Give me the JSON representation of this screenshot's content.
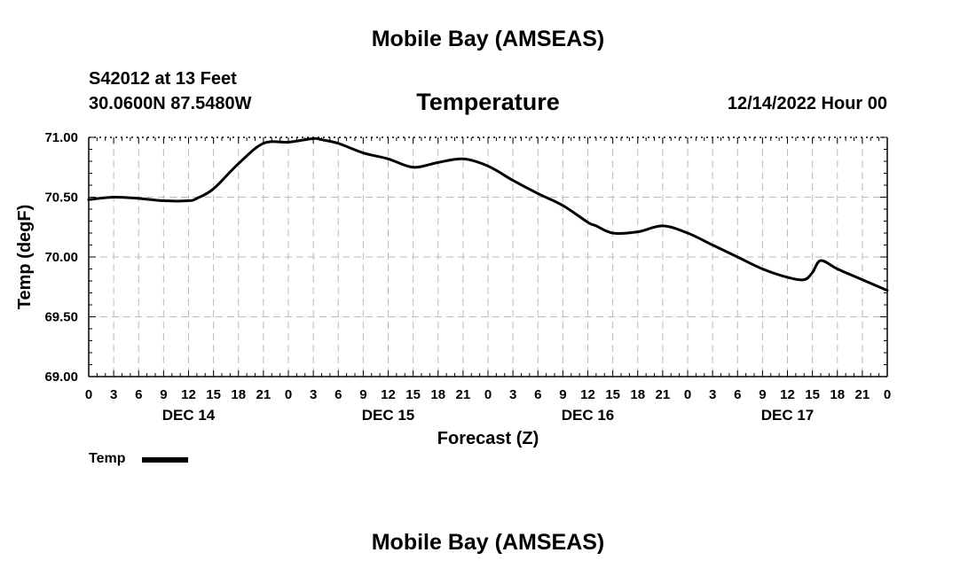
{
  "header": {
    "title": "Mobile Bay (AMSEAS)",
    "station": "S42012 at 13 Feet",
    "coords": "30.0600N  87.5480W",
    "chart_title": "Temperature",
    "datetime": "12/14/2022 Hour 00"
  },
  "footer": {
    "title": "Mobile Bay (AMSEAS)"
  },
  "legend": {
    "label": "Temp"
  },
  "colors": {
    "line": "#000000",
    "grid": "#bbbbbb",
    "axis": "#000000"
  },
  "chart_data": {
    "type": "line",
    "title": "Temperature",
    "xlabel": "Forecast (Z)",
    "ylabel": "Temp (degF)",
    "ylim": [
      69.0,
      71.0
    ],
    "yticks": [
      "69.00",
      "69.50",
      "70.00",
      "70.50",
      "71.00"
    ],
    "x_hours_range": [
      0,
      96
    ],
    "xtick_labels": [
      "0",
      "3",
      "6",
      "9",
      "12",
      "15",
      "18",
      "21",
      "0",
      "3",
      "6",
      "9",
      "12",
      "15",
      "18",
      "21",
      "0",
      "3",
      "6",
      "9",
      "12",
      "15",
      "18",
      "21",
      "0",
      "3",
      "6",
      "9",
      "12",
      "15",
      "18",
      "21",
      "0"
    ],
    "day_labels": [
      {
        "label": "DEC 14",
        "hour": 12
      },
      {
        "label": "DEC 15",
        "hour": 36
      },
      {
        "label": "DEC 16",
        "hour": 60
      },
      {
        "label": "DEC 17",
        "hour": 84
      }
    ],
    "grid": true,
    "series": [
      {
        "name": "Temp",
        "x": [
          0,
          3,
          6,
          9,
          12,
          13,
          15,
          18,
          21,
          24,
          27,
          28,
          30,
          33,
          36,
          39,
          42,
          45,
          48,
          51,
          54,
          57,
          60,
          61,
          63,
          66,
          69,
          72,
          75,
          78,
          81,
          84,
          86,
          87,
          88,
          90,
          93,
          96
        ],
        "y": [
          70.48,
          70.5,
          70.49,
          70.47,
          70.47,
          70.49,
          70.57,
          70.78,
          70.95,
          70.96,
          70.99,
          70.98,
          70.95,
          70.87,
          70.82,
          70.75,
          70.79,
          70.82,
          70.76,
          70.64,
          70.53,
          70.43,
          70.29,
          70.26,
          70.2,
          70.21,
          70.26,
          70.2,
          70.1,
          70.0,
          69.9,
          69.83,
          69.81,
          69.87,
          69.97,
          69.9,
          69.81,
          69.72
        ]
      }
    ]
  }
}
